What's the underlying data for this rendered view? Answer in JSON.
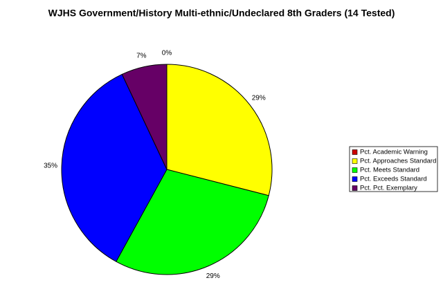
{
  "chart_data": {
    "type": "pie",
    "title": "WJHS Government/History Multi-ethnic/Undeclared 8th Graders (14 Tested)",
    "series": [
      {
        "name": "Pct. Academic Warning",
        "color": "#cc0000"
      },
      {
        "name": "Pct. Approaches Standard",
        "color": "#ffff00"
      },
      {
        "name": "Pct. Meets Standard",
        "color": "#00ff00"
      },
      {
        "name": "Pct. Exceeds Standard",
        "color": "#0000ff"
      },
      {
        "name": "Pct. Pct. Exemplary",
        "color": "#660066"
      }
    ],
    "values": [
      0,
      29,
      29,
      35,
      7
    ],
    "value_labels": [
      "0%",
      "29%",
      "29%",
      "35%",
      "7%"
    ],
    "legend": "right"
  }
}
